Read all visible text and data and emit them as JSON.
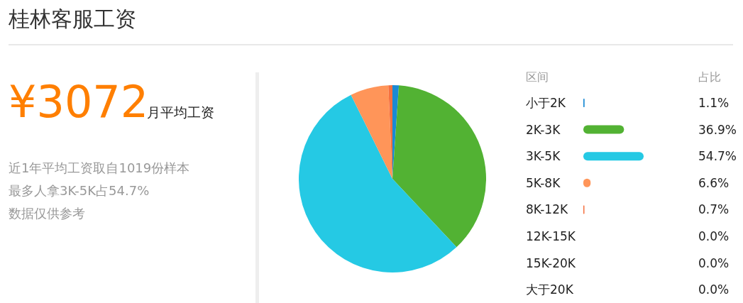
{
  "chart_data": {
    "type": "pie",
    "title": "桂林客服工资",
    "categories": [
      "小于2K",
      "2K-3K",
      "3K-5K",
      "5K-8K",
      "8K-12K",
      "12K-15K",
      "15K-20K",
      "大于20K"
    ],
    "values": [
      1.1,
      36.9,
      54.7,
      6.6,
      0.7,
      0.0,
      0.0,
      0.0
    ],
    "colors": [
      "#1a8ad4",
      "#52b233",
      "#25c9e4",
      "#ff9559",
      "#f5703f",
      "#999999",
      "#999999",
      "#999999"
    ],
    "value_labels": [
      "1.1%",
      "36.9%",
      "54.7%",
      "6.6%",
      "0.7%",
      "0.0%",
      "0.0%",
      "0.0%"
    ],
    "annotations": [
      "¥3072",
      "月平均工资",
      "近1年平均工资取自1019份样本",
      "最多人拿3K-5K占54.7%",
      "数据仅供参考",
      "区间",
      "占比"
    ],
    "legend": "right"
  }
}
